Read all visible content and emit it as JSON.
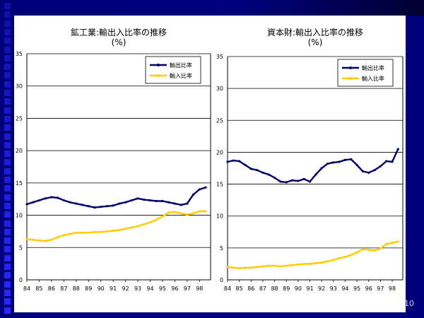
{
  "page_number": "10",
  "charts_meta": {
    "line_color_export": "#000066",
    "line_color_import": "#ffcc00"
  },
  "chart_data": [
    {
      "type": "line",
      "title": "鉱工業:輸出入比率の推移",
      "subtitle": "(%)",
      "x_ticks": [
        "84",
        "85",
        "86",
        "87",
        "88",
        "89",
        "90",
        "91",
        "92",
        "93",
        "94",
        "95",
        "96",
        "97",
        "98"
      ],
      "ylim": [
        0,
        35
      ],
      "y_ticks": [
        0,
        5,
        10,
        15,
        20,
        25,
        30,
        35
      ],
      "grid": true,
      "legend": "top-right",
      "x": [
        84,
        84.5,
        85,
        85.5,
        86,
        86.5,
        87,
        87.5,
        88,
        88.5,
        89,
        89.5,
        90,
        90.5,
        91,
        91.5,
        92,
        92.5,
        93,
        93.5,
        94,
        94.5,
        95,
        95.5,
        96,
        96.5,
        97,
        97.5,
        98,
        98.5
      ],
      "series": [
        {
          "name": "輸出比率",
          "values": [
            11.7,
            12.0,
            12.3,
            12.6,
            12.8,
            12.7,
            12.3,
            12.0,
            11.8,
            11.6,
            11.4,
            11.2,
            11.3,
            11.4,
            11.5,
            11.8,
            12.0,
            12.3,
            12.6,
            12.4,
            12.3,
            12.2,
            12.2,
            12.0,
            11.8,
            11.6,
            11.8,
            13.2,
            14.0,
            14.3
          ]
        },
        {
          "name": "輸入比率",
          "values": [
            6.3,
            6.2,
            6.1,
            6.0,
            6.2,
            6.6,
            6.9,
            7.1,
            7.3,
            7.3,
            7.3,
            7.4,
            7.4,
            7.5,
            7.6,
            7.7,
            7.9,
            8.1,
            8.3,
            8.6,
            8.9,
            9.3,
            9.8,
            10.4,
            10.5,
            10.3,
            10.1,
            10.3,
            10.6,
            10.6
          ]
        }
      ]
    },
    {
      "type": "line",
      "title": "資本財:輸出入比率の推移",
      "subtitle": "(%)",
      "x_ticks": [
        "84",
        "85",
        "86",
        "87",
        "88",
        "89",
        "90",
        "91",
        "92",
        "93",
        "94",
        "95",
        "96",
        "97",
        "98"
      ],
      "ylim": [
        0,
        35
      ],
      "y_ticks": [
        0,
        5,
        10,
        15,
        20,
        25,
        30,
        35
      ],
      "grid": true,
      "legend": "top-right",
      "x": [
        84,
        84.5,
        85,
        85.5,
        86,
        86.5,
        87,
        87.5,
        88,
        88.5,
        89,
        89.5,
        90,
        90.5,
        91,
        91.5,
        92,
        92.5,
        93,
        93.5,
        94,
        94.5,
        95,
        95.5,
        96,
        96.5,
        97,
        97.5,
        98,
        98.5
      ],
      "series": [
        {
          "name": "輸出比率",
          "values": [
            18.5,
            18.7,
            18.6,
            18.0,
            17.4,
            17.2,
            16.8,
            16.5,
            16.0,
            15.4,
            15.3,
            15.6,
            15.5,
            15.8,
            15.4,
            16.5,
            17.5,
            18.2,
            18.4,
            18.5,
            18.8,
            18.9,
            18.0,
            17.0,
            16.8,
            17.2,
            17.8,
            18.6,
            18.5,
            20.5
          ]
        },
        {
          "name": "輸入比率",
          "values": [
            2.0,
            1.9,
            1.8,
            1.9,
            1.9,
            2.0,
            2.1,
            2.2,
            2.2,
            2.1,
            2.2,
            2.3,
            2.4,
            2.5,
            2.5,
            2.6,
            2.7,
            2.9,
            3.1,
            3.4,
            3.6,
            3.9,
            4.3,
            4.8,
            4.7,
            4.6,
            4.9,
            5.6,
            5.8,
            6.0
          ]
        }
      ]
    }
  ]
}
